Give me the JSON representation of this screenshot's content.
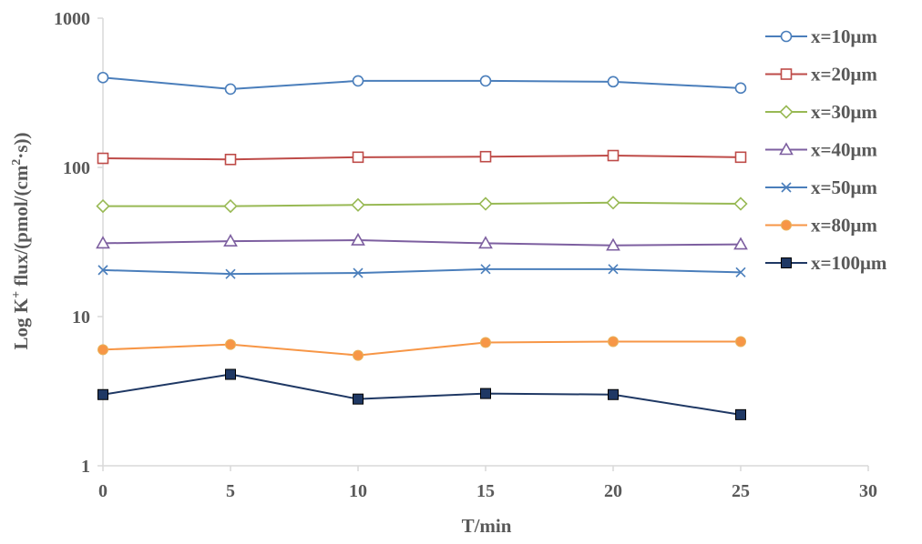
{
  "chart_data": {
    "type": "line",
    "title": "",
    "xlabel": "T/min",
    "ylabel_parts": {
      "prefix": "Log K",
      "sup1": "+",
      "middle": " flux/(pmol/(cm",
      "sup2": "2",
      "suffix": "·s))"
    },
    "yscale": "log",
    "xlim": [
      0,
      30
    ],
    "ylim": [
      1,
      1000
    ],
    "x_ticks": [
      0,
      5,
      10,
      15,
      20,
      25,
      30
    ],
    "y_ticks": [
      1,
      10,
      100,
      1000
    ],
    "grid": false,
    "legend_position": "right",
    "x": [
      0,
      5,
      10,
      15,
      20,
      25
    ],
    "series": [
      {
        "name": "x=10μm",
        "color": "#4a7ebb",
        "marker": "circle-open",
        "values": [
          400,
          335,
          380,
          380,
          375,
          340
        ]
      },
      {
        "name": "x=20μm",
        "color": "#be4b48",
        "marker": "square-open",
        "values": [
          115,
          113,
          117,
          118,
          120,
          117
        ]
      },
      {
        "name": "x=30μm",
        "color": "#98b954",
        "marker": "diamond-open",
        "values": [
          55,
          55,
          56,
          57,
          58,
          57
        ]
      },
      {
        "name": "x=40μm",
        "color": "#7d5fa0",
        "marker": "triangle-open",
        "values": [
          31,
          32,
          32.5,
          31,
          30,
          30.5
        ]
      },
      {
        "name": "x=50μm",
        "color": "#4a7ebb",
        "marker": "x",
        "values": [
          20.5,
          19.3,
          19.6,
          20.8,
          20.8,
          19.8
        ]
      },
      {
        "name": "x=80μm",
        "color": "#f79646",
        "marker": "circle-filled",
        "values": [
          6,
          6.5,
          5.5,
          6.7,
          6.8,
          6.8
        ]
      },
      {
        "name": "x=100μm",
        "color": "#1f3864",
        "marker": "square-filled",
        "values": [
          3,
          4.1,
          2.8,
          3.05,
          3,
          2.2
        ]
      }
    ]
  }
}
